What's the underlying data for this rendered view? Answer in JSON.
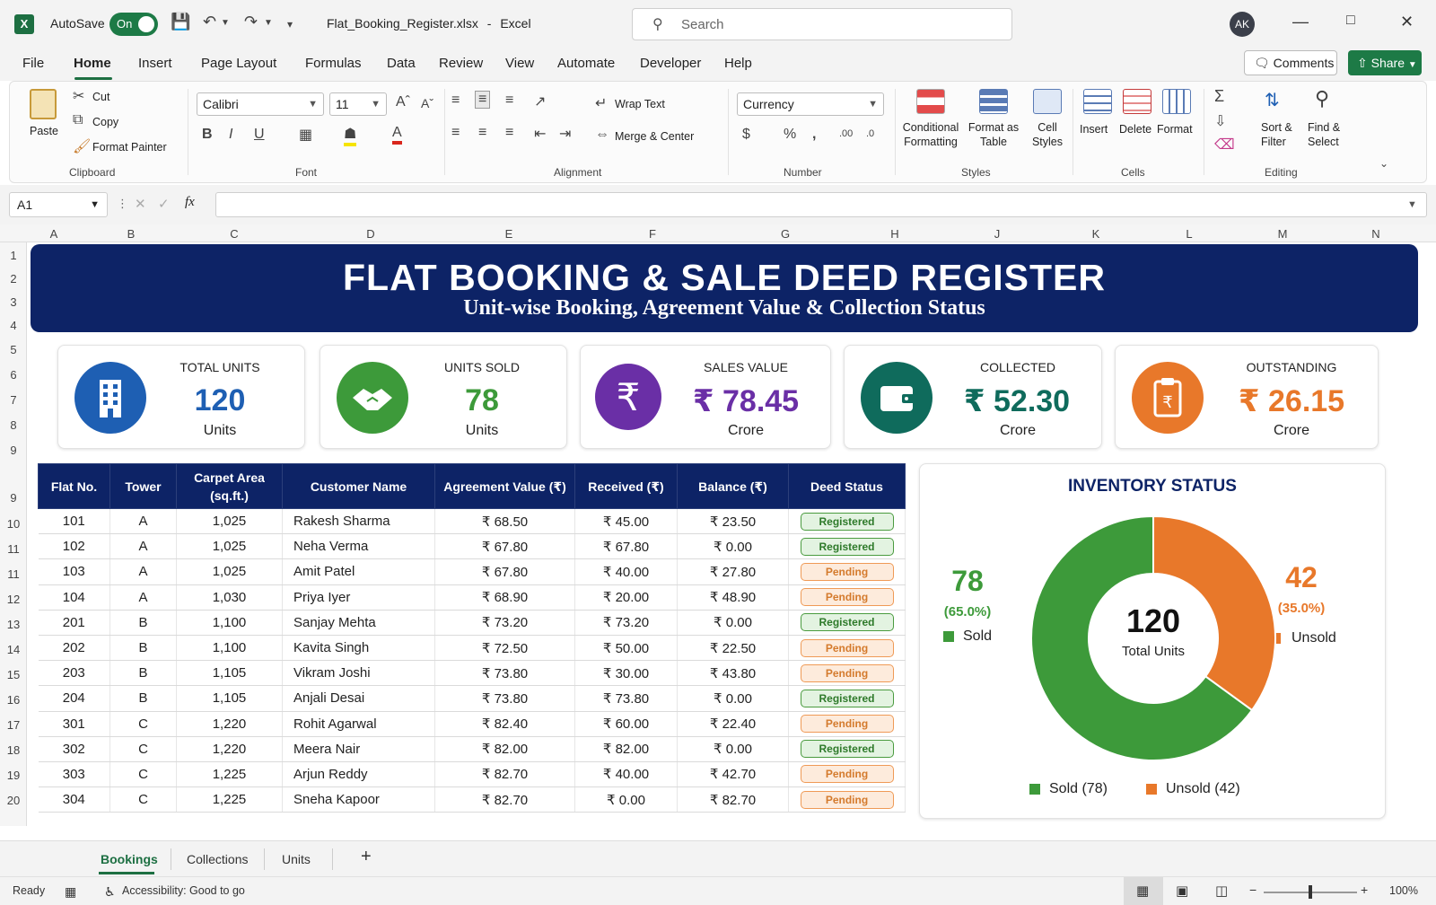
{
  "app": {
    "autosave_label": "AutoSave",
    "autosave_state": "On",
    "filename": "Flat_Booking_Register.xlsx",
    "separator": "-",
    "app_name": "Excel",
    "search_placeholder": "Search",
    "avatar_initials": "AK"
  },
  "menu": {
    "items": [
      "File",
      "Home",
      "Insert",
      "Page Layout",
      "Formulas",
      "Data",
      "Review",
      "View",
      "Automate",
      "Developer",
      "Help"
    ],
    "comments": "Comments",
    "share": "Share"
  },
  "ribbon": {
    "clipboard": {
      "paste": "Paste",
      "cut": "Cut",
      "copy": "Copy",
      "format_painter": "Format Painter",
      "label": "Clipboard"
    },
    "font": {
      "name": "Calibri",
      "size": "11",
      "label": "Font"
    },
    "alignment": {
      "wrap_text": "Wrap Text",
      "merge_center": "Merge & Center",
      "label": "Alignment"
    },
    "number": {
      "format": "Currency",
      "label": "Number"
    },
    "styles": {
      "conditional_1": "Conditional",
      "conditional_2": "Formatting",
      "format_table_1": "Format as",
      "format_table_2": "Table",
      "cell_styles_1": "Cell",
      "cell_styles_2": "Styles",
      "label": "Styles"
    },
    "cells": {
      "insert": "Insert",
      "delete": "Delete",
      "format": "Format",
      "label": "Cells"
    },
    "editing": {
      "sort_1": "Sort &",
      "sort_2": "Filter",
      "find_1": "Find &",
      "find_2": "Select",
      "label": "Editing"
    }
  },
  "formula_bar": {
    "cell_ref": "A1",
    "fx": "fx",
    "value": ""
  },
  "columns": [
    "A",
    "B",
    "C",
    "D",
    "E",
    "F",
    "G",
    "H",
    "J",
    "K",
    "L",
    "M",
    "N"
  ],
  "rows": [
    "1",
    "2",
    "3",
    "4",
    "5",
    "6",
    "7",
    "8",
    "9",
    "9",
    "10",
    "11",
    "11",
    "12",
    "13",
    "14",
    "15",
    "16",
    "17",
    "18",
    "19",
    "20"
  ],
  "banner": {
    "title": "FLAT BOOKING & SALE DEED REGISTER",
    "subtitle": "Unit-wise Booking, Agreement Value & Collection Status"
  },
  "kpis": [
    {
      "label": "TOTAL UNITS",
      "value": "120",
      "unit": "Units",
      "color": "#1e5fb3",
      "icon": "building-icon"
    },
    {
      "label": "UNITS SOLD",
      "value": "78",
      "unit": "Units",
      "color": "#3d9a3a",
      "icon": "handshake-icon"
    },
    {
      "label": "SALES VALUE",
      "value": "₹ 78.45",
      "unit": "Crore",
      "color": "#6a2fa6",
      "icon": "rupee-icon"
    },
    {
      "label": "COLLECTED",
      "value": "₹ 52.30",
      "unit": "Crore",
      "color": "#0f6b5c",
      "icon": "wallet-icon"
    },
    {
      "label": "OUTSTANDING",
      "value": "₹ 26.15",
      "unit": "Crore",
      "color": "#e8782a",
      "icon": "clipboard-icon"
    }
  ],
  "table": {
    "headers": [
      "Flat No.",
      "Tower",
      "Carpet Area (sq.ft.)",
      "Customer Name",
      "Agreement Value (₹)",
      "Received (₹)",
      "Balance (₹)",
      "Deed Status"
    ],
    "rows": [
      [
        "101",
        "A",
        "1,025",
        "Rakesh Sharma",
        "₹ 68.50",
        "₹ 45.00",
        "₹ 23.50",
        "Registered"
      ],
      [
        "102",
        "A",
        "1,025",
        "Neha Verma",
        "₹ 67.80",
        "₹ 67.80",
        "₹ 0.00",
        "Registered"
      ],
      [
        "103",
        "A",
        "1,025",
        "Amit Patel",
        "₹ 67.80",
        "₹ 40.00",
        "₹ 27.80",
        "Pending"
      ],
      [
        "104",
        "A",
        "1,030",
        "Priya Iyer",
        "₹ 68.90",
        "₹ 20.00",
        "₹ 48.90",
        "Pending"
      ],
      [
        "201",
        "B",
        "1,100",
        "Sanjay Mehta",
        "₹ 73.20",
        "₹ 73.20",
        "₹ 0.00",
        "Registered"
      ],
      [
        "202",
        "B",
        "1,100",
        "Kavita Singh",
        "₹ 72.50",
        "₹ 50.00",
        "₹ 22.50",
        "Pending"
      ],
      [
        "203",
        "B",
        "1,105",
        "Vikram Joshi",
        "₹ 73.80",
        "₹ 30.00",
        "₹ 43.80",
        "Pending"
      ],
      [
        "204",
        "B",
        "1,105",
        "Anjali Desai",
        "₹ 73.80",
        "₹ 73.80",
        "₹ 0.00",
        "Registered"
      ],
      [
        "301",
        "C",
        "1,220",
        "Rohit Agarwal",
        "₹ 82.40",
        "₹ 60.00",
        "₹ 22.40",
        "Pending"
      ],
      [
        "302",
        "C",
        "1,220",
        "Meera Nair",
        "₹ 82.00",
        "₹ 82.00",
        "₹ 0.00",
        "Registered"
      ],
      [
        "303",
        "C",
        "1,225",
        "Arjun Reddy",
        "₹ 82.70",
        "₹ 40.00",
        "₹ 42.70",
        "Pending"
      ],
      [
        "304",
        "C",
        "1,225",
        "Sneha Kapoor",
        "₹ 82.70",
        "₹ 0.00",
        "₹ 82.70",
        "Pending"
      ]
    ]
  },
  "inventory": {
    "title": "INVENTORY STATUS",
    "center_value": "120",
    "center_label": "Total Units",
    "sold_value": "78",
    "sold_pct": "(65.0%)",
    "sold_label": "Sold",
    "unsold_value": "42",
    "unsold_pct": "(35.0%)",
    "unsold_label": "Unsold",
    "legend_sold": "Sold (78)",
    "legend_unsold": "Unsold (42)",
    "sold_color": "#3d9a3a",
    "unsold_color": "#e8782a"
  },
  "chart_data": {
    "type": "pie",
    "title": "INVENTORY STATUS",
    "categories": [
      "Sold",
      "Unsold"
    ],
    "values": [
      78,
      42
    ],
    "percentages": [
      65.0,
      35.0
    ],
    "total": 120,
    "colors": [
      "#3d9a3a",
      "#e8782a"
    ],
    "legend": "bottom"
  },
  "sheets": {
    "tabs": [
      "Bookings",
      "Collections",
      "Units"
    ],
    "add": "+"
  },
  "status": {
    "ready": "Ready",
    "accessibility": "Accessibility: Good to go",
    "zoom": "100%"
  }
}
